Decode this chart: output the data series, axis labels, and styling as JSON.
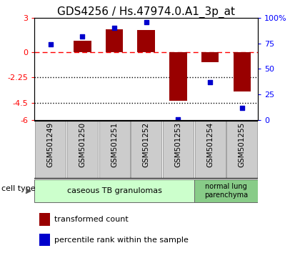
{
  "title": "GDS4256 / Hs.47974.0.A1_3p_at",
  "samples": [
    "GSM501249",
    "GSM501250",
    "GSM501251",
    "GSM501252",
    "GSM501253",
    "GSM501254",
    "GSM501255"
  ],
  "transformed_counts": [
    0.0,
    1.0,
    2.0,
    1.9,
    -4.3,
    -0.9,
    -3.5
  ],
  "percentile_ranks": [
    74,
    82,
    90,
    96,
    1,
    37,
    12
  ],
  "ylim_left": [
    -6,
    3
  ],
  "ylim_right": [
    0,
    100
  ],
  "yticks_left": [
    3,
    0,
    -2.25,
    -4.5,
    -6
  ],
  "ytick_labels_left": [
    "3",
    "0",
    "-2.25",
    "-4.5",
    "-6"
  ],
  "yticks_right": [
    100,
    75,
    50,
    25,
    0
  ],
  "ytick_labels_right": [
    "100%",
    "75",
    "50",
    "25",
    "0"
  ],
  "hlines_dotted": [
    -2.25,
    -4.5
  ],
  "hline_dashed": 0,
  "bar_color": "#990000",
  "dot_color": "#0000cc",
  "bar_width": 0.55,
  "group1_count": 5,
  "group2_count": 2,
  "group1_label": "caseous TB granulomas",
  "group2_label": "normal lung\nparenchyma",
  "group1_color": "#ccffcc",
  "group2_color": "#88cc88",
  "sample_box_color": "#cccccc",
  "cell_type_label": "cell type",
  "legend_bar_label": "transformed count",
  "legend_dot_label": "percentile rank within the sample",
  "title_fontsize": 11,
  "tick_fontsize": 8,
  "label_fontsize": 8,
  "sample_label_fontsize": 7.5
}
